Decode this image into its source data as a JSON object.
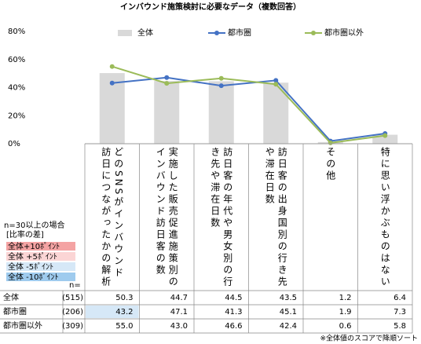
{
  "chart_data": {
    "type": "bar",
    "title": "インバウンド施策検討に必要なデータ（複数回答）",
    "categories": [
      "どのSNSがインバウンド訪日につながったかの解析",
      "実施した販売促進施策別のインバウンド訪日客の数",
      "訪日客の年代や男女別の行き先や滞在日数",
      "訪日客の出身国別の行き先や滞在日数",
      "その他",
      "特に思い浮かぶものはない"
    ],
    "ylim": [
      0,
      80
    ],
    "yticks": [
      {
        "value": 0,
        "label": "0%"
      },
      {
        "value": 20,
        "label": "20%"
      },
      {
        "value": 40,
        "label": "40%"
      },
      {
        "value": 60,
        "label": "60%"
      },
      {
        "value": 80,
        "label": "80%"
      }
    ],
    "legend_position": "top",
    "series": [
      {
        "name": "全体",
        "type": "bar",
        "color": "#d9d9d9",
        "n": "(515)",
        "values": [
          50.3,
          44.7,
          44.5,
          43.5,
          1.2,
          6.4
        ],
        "value_labels": [
          "50.3",
          "44.7",
          "44.5",
          "43.5",
          "1.2",
          "6.4"
        ]
      },
      {
        "name": "都市圏",
        "type": "line",
        "color": "#4472c4",
        "n": "(206)",
        "values": [
          43.2,
          47.1,
          41.3,
          45.1,
          1.9,
          7.3
        ],
        "value_labels": [
          "43.2",
          "47.1",
          "41.3",
          "45.1",
          "1.9",
          "7.3"
        ]
      },
      {
        "name": "都市圏以外",
        "type": "line",
        "color": "#9bbb59",
        "n": "(309)",
        "values": [
          55.0,
          43.0,
          46.6,
          42.4,
          0.6,
          5.8
        ],
        "value_labels": [
          "55.0",
          "43.0",
          "46.6",
          "42.4",
          "0.6",
          "5.8"
        ]
      }
    ],
    "n_label": "n=",
    "diff_legend": {
      "title": "n=30以上の場合",
      "subtitle": "[比率の差]",
      "items": [
        {
          "label": "全体+10ﾎﾟｲﾝﾄ",
          "value": 10,
          "color": "#f4a3a3"
        },
        {
          "label": "全体 +5ﾎﾟｲﾝﾄ",
          "value": 5,
          "color": "#fbd5d5"
        },
        {
          "label": "全体 -5ﾎﾟｲﾝﾄ",
          "value": -5,
          "color": "#d6e8f7"
        },
        {
          "label": "全体 -10ﾎﾟｲﾝﾄ",
          "value": -10,
          "color": "#9fcbee"
        }
      ]
    },
    "footnote": "※全体値のスコアで降順ソート"
  }
}
